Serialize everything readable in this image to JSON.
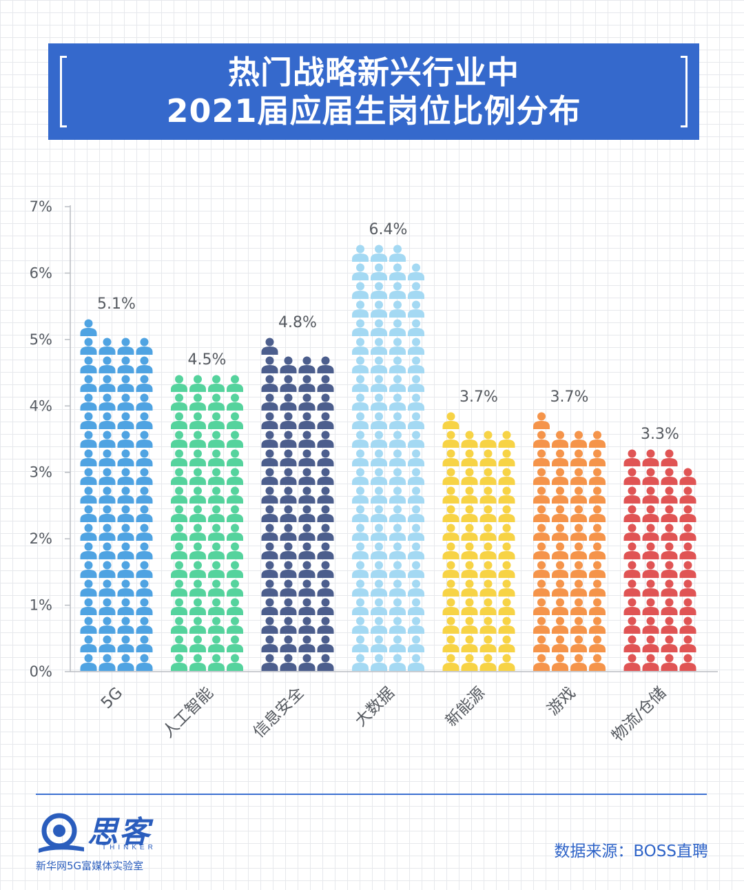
{
  "title": {
    "line1": "热门战略新兴行业中",
    "line2": "2021届应届生岗位比例分布"
  },
  "chart_data": {
    "type": "bar",
    "categories": [
      "5G",
      "人工智能",
      "信息安全",
      "大数据",
      "新能源",
      "游戏",
      "物流/仓储"
    ],
    "values": [
      5.1,
      4.5,
      4.8,
      6.4,
      3.7,
      3.7,
      3.3
    ],
    "value_labels": [
      "5.1%",
      "4.5%",
      "4.8%",
      "6.4%",
      "3.7%",
      "3.7%",
      "3.3%"
    ],
    "colors": [
      "#4fa3e2",
      "#55d39d",
      "#4c5e8d",
      "#a4d9f3",
      "#f7d345",
      "#f5944a",
      "#e05454"
    ],
    "yticks": [
      "0%",
      "1%",
      "2%",
      "3%",
      "4%",
      "5%",
      "6%",
      "7%"
    ],
    "ylim": [
      0,
      7
    ],
    "unit": "%",
    "mark": "person-icon"
  },
  "footer": {
    "logo_cn": "思客",
    "logo_en": "THINKER",
    "logo_sub": "新华网5G富媒体实验室",
    "source": "数据来源：BOSS直聘"
  }
}
